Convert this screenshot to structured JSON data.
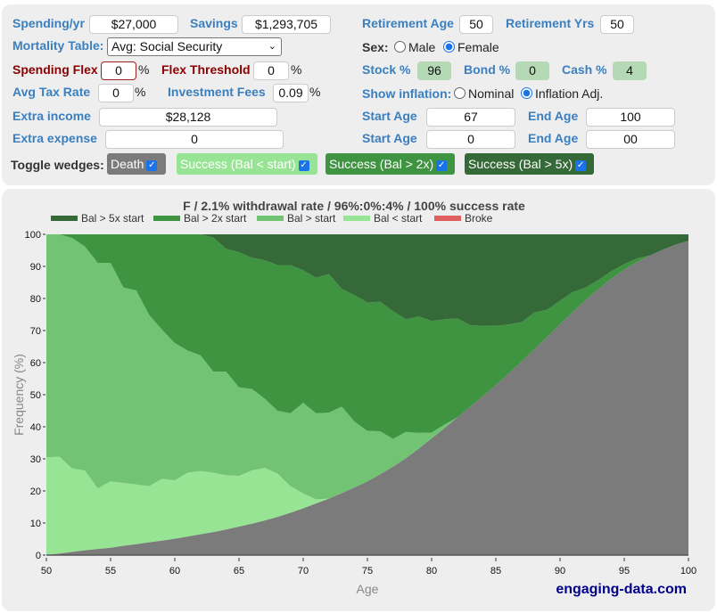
{
  "controls": {
    "spending_label": "Spending/yr",
    "spending_value": "$27,000",
    "savings_label": "Savings",
    "savings_value": "$1,293,705",
    "mortality_label": "Mortality Table:",
    "mortality_value": "Avg: Social Security",
    "flex_label": "Spending Flex",
    "flex_value": "0",
    "flex_threshold_label": "Flex Threshold",
    "flex_threshold_value": "0",
    "tax_label": "Avg Tax Rate",
    "tax_value": "0",
    "fees_label": "Investment Fees",
    "fees_value": "0.09",
    "percent": "%",
    "extra_income_label": "Extra income",
    "extra_income_value": "$28,128",
    "extra_expense_label": "Extra expense",
    "extra_expense_value": "0",
    "ret_age_label": "Retirement Age",
    "ret_age_value": "50",
    "ret_yrs_label": "Retirement Yrs",
    "ret_yrs_value": "50",
    "sex_label": "Sex:",
    "sex_male": "Male",
    "sex_female": "Female",
    "sex_selected": "Female",
    "stock_label": "Stock %",
    "stock_value": "96",
    "bond_label": "Bond %",
    "bond_value": "0",
    "cash_label": "Cash %",
    "cash_value": "4",
    "inflation_label": "Show inflation:",
    "inflation_nominal": "Nominal",
    "inflation_adj": "Inflation Adj.",
    "inflation_selected": "Inflation Adj.",
    "start_age_label": "Start Age",
    "start_age_1": "67",
    "end_age_label": "End Age",
    "end_age_1": "100",
    "start_age_2": "0",
    "end_age_2": "00",
    "toggle_label": "Toggle wedges:",
    "wedges": [
      {
        "label": "Death",
        "checked": true,
        "color": "#7b7b7b"
      },
      {
        "label": "Success (Bal < start)",
        "checked": true,
        "color": "#98e495"
      },
      {
        "label": "Success (Bal > 2x)",
        "checked": true,
        "color": "#3f9442"
      },
      {
        "label": "Success (Bal > 5x)",
        "checked": true,
        "color": "#356a38"
      }
    ]
  },
  "chart_data": {
    "type": "area",
    "stacked": true,
    "title": "F / 2.1% withdrawal rate / 96%:0%:4% / 100% success rate",
    "xlabel": "Age",
    "ylabel": "Frequency (%)",
    "xlim": [
      50,
      100
    ],
    "ylim": [
      0,
      100
    ],
    "xticks": [
      50,
      55,
      60,
      65,
      70,
      75,
      80,
      85,
      90,
      95,
      100
    ],
    "yticks": [
      0,
      10,
      20,
      30,
      40,
      50,
      60,
      70,
      80,
      90,
      100
    ],
    "legend_position": "top",
    "x": [
      50,
      51,
      52,
      53,
      54,
      55,
      56,
      57,
      58,
      59,
      60,
      61,
      62,
      63,
      64,
      65,
      66,
      67,
      68,
      69,
      70,
      71,
      72,
      73,
      74,
      75,
      76,
      77,
      78,
      79,
      80,
      81,
      82,
      83,
      84,
      85,
      86,
      87,
      88,
      89,
      90,
      91,
      92,
      93,
      94,
      95,
      96,
      97,
      98,
      99,
      100
    ],
    "series": [
      {
        "name": "Death",
        "legend": false,
        "color": "#7b7b7b",
        "values": [
          0,
          0.5,
          1,
          1.5,
          1.9,
          2.3,
          2.9,
          3.4,
          4,
          4.5,
          5.1,
          5.8,
          6.5,
          7.2,
          8,
          8.9,
          9.8,
          10.8,
          11.9,
          13.2,
          14.6,
          16.1,
          17.6,
          19.3,
          21.1,
          23,
          25.2,
          27.6,
          30.2,
          33.2,
          36.4,
          39.6,
          42.9,
          46.2,
          49.6,
          53,
          56.6,
          60.3,
          64.2,
          68,
          72,
          75.8,
          79.6,
          83,
          86.2,
          89,
          91.4,
          93.4,
          95.2,
          96.8,
          98
        ]
      },
      {
        "name": "Broke",
        "legend": true,
        "color": "#e06060",
        "values": [
          0,
          0,
          0,
          0,
          0,
          0,
          0,
          0,
          0,
          0,
          0,
          0,
          0,
          0,
          0,
          0,
          0,
          0,
          0,
          0,
          0,
          0,
          0,
          0,
          0,
          0,
          0,
          0,
          0,
          0,
          0,
          0,
          0,
          0,
          0,
          0,
          0,
          0,
          0,
          0,
          0,
          0,
          0,
          0,
          0,
          0,
          0,
          0,
          0,
          0,
          0
        ]
      },
      {
        "name": "Bal < start",
        "legend": true,
        "color": "#98e495",
        "values": [
          30.5,
          30.2,
          26,
          24.9,
          18.9,
          20.7,
          19.6,
          18.6,
          17.5,
          19.3,
          18.2,
          19.9,
          19.7,
          18.5,
          16.9,
          15.8,
          16.6,
          16.4,
          13.5,
          8.3,
          4.6,
          1.3,
          0,
          0,
          0,
          0,
          0,
          0,
          0,
          0,
          0,
          0,
          0,
          0,
          0,
          0,
          0,
          0,
          0,
          0,
          0,
          0,
          0,
          0,
          0,
          0,
          0,
          0,
          0,
          0,
          0
        ]
      },
      {
        "name": "Bal > start",
        "legend": true,
        "color": "#72c474",
        "values": [
          69.5,
          69.3,
          71.9,
          69.8,
          70.3,
          68.1,
          60.9,
          60.5,
          53.4,
          46.5,
          42.8,
          38.1,
          36.1,
          31.5,
          32.3,
          27.6,
          25.4,
          21.6,
          19.6,
          22.7,
          28.3,
          26.8,
          26.8,
          27,
          20.5,
          15.7,
          13.4,
          8.6,
          8.2,
          4.9,
          1.8,
          1.1,
          0,
          0,
          0,
          0,
          0,
          0,
          0,
          0,
          0,
          0,
          0,
          0,
          0,
          0,
          0,
          0,
          0,
          0,
          0
        ]
      },
      {
        "name": "Bal > 2x start",
        "legend": true,
        "color": "#3f9442",
        "values": [
          0,
          0,
          1.1,
          3.8,
          8.9,
          8.9,
          16.6,
          17.5,
          25.1,
          29.7,
          33.9,
          36.2,
          37.7,
          41.8,
          38.3,
          42.1,
          40.9,
          43.1,
          45.4,
          46.2,
          41.3,
          42.3,
          43.2,
          36.7,
          39.4,
          40,
          40.4,
          39.8,
          35.1,
          36.3,
          34.8,
          32.8,
          30.9,
          25.5,
          21.9,
          18.5,
          15.3,
          12.3,
          11.4,
          8.5,
          7.3,
          6.2,
          3.8,
          2.8,
          2.3,
          1.7,
          1.1,
          0,
          0,
          0,
          0
        ]
      },
      {
        "name": "Bal > 5x start",
        "legend": true,
        "color": "#356a38",
        "values": [
          0,
          0,
          0,
          0,
          0,
          0,
          0,
          0,
          0,
          0,
          0,
          0,
          0,
          1,
          4.5,
          5.6,
          7.3,
          8.1,
          9.6,
          9.6,
          11.2,
          13.5,
          12.4,
          17,
          19,
          21.3,
          21,
          24,
          26.5,
          25.6,
          27,
          26.5,
          26.2,
          28.3,
          28.5,
          28.5,
          28.1,
          27.4,
          24.4,
          23.5,
          20.7,
          18,
          16.6,
          14.2,
          11.5,
          9.3,
          7.5,
          6.6,
          4.8,
          3.2,
          2
        ]
      }
    ],
    "legend_order": [
      "Bal > 5x start",
      "Bal > 2x start",
      "Bal > start",
      "Bal < start",
      "Broke"
    ],
    "watermark": "engaging-data.com"
  }
}
